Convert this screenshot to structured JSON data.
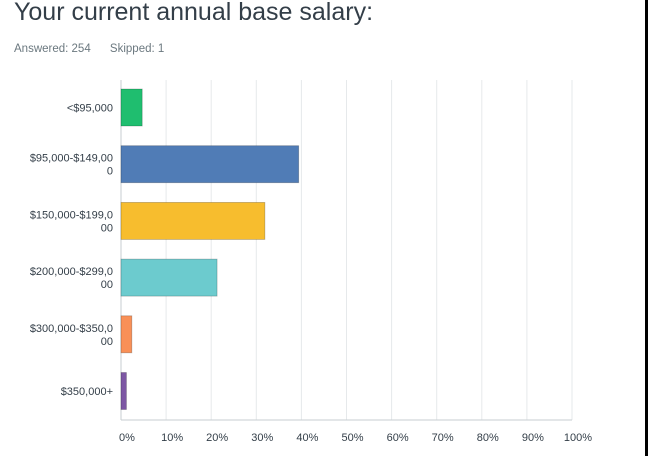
{
  "question": {
    "title": "Your current annual base salary:",
    "answered": "Answered: 254",
    "skipped": "Skipped: 1"
  },
  "chart_data": {
    "type": "bar",
    "orientation": "horizontal",
    "categories": [
      [
        "<$95,000"
      ],
      [
        "$95,000-$149,00",
        "0"
      ],
      [
        "$150,000-$199,0",
        "00"
      ],
      [
        "$200,000-$299,0",
        "00"
      ],
      [
        "$300,000-$350,0",
        "00"
      ],
      [
        "$350,000+"
      ]
    ],
    "values": [
      4.7,
      39.4,
      31.9,
      21.3,
      2.4,
      1.2
    ],
    "colors": [
      "#1fbe6f",
      "#507cb6",
      "#f7bd2e",
      "#6ccbce",
      "#f99057",
      "#7d57a4"
    ],
    "xlim": [
      0,
      100
    ],
    "xticks": [
      "0%",
      "10%",
      "20%",
      "30%",
      "40%",
      "50%",
      "60%",
      "70%",
      "80%",
      "90%",
      "100%"
    ],
    "grid": true,
    "title": "",
    "xlabel": "",
    "ylabel": ""
  }
}
